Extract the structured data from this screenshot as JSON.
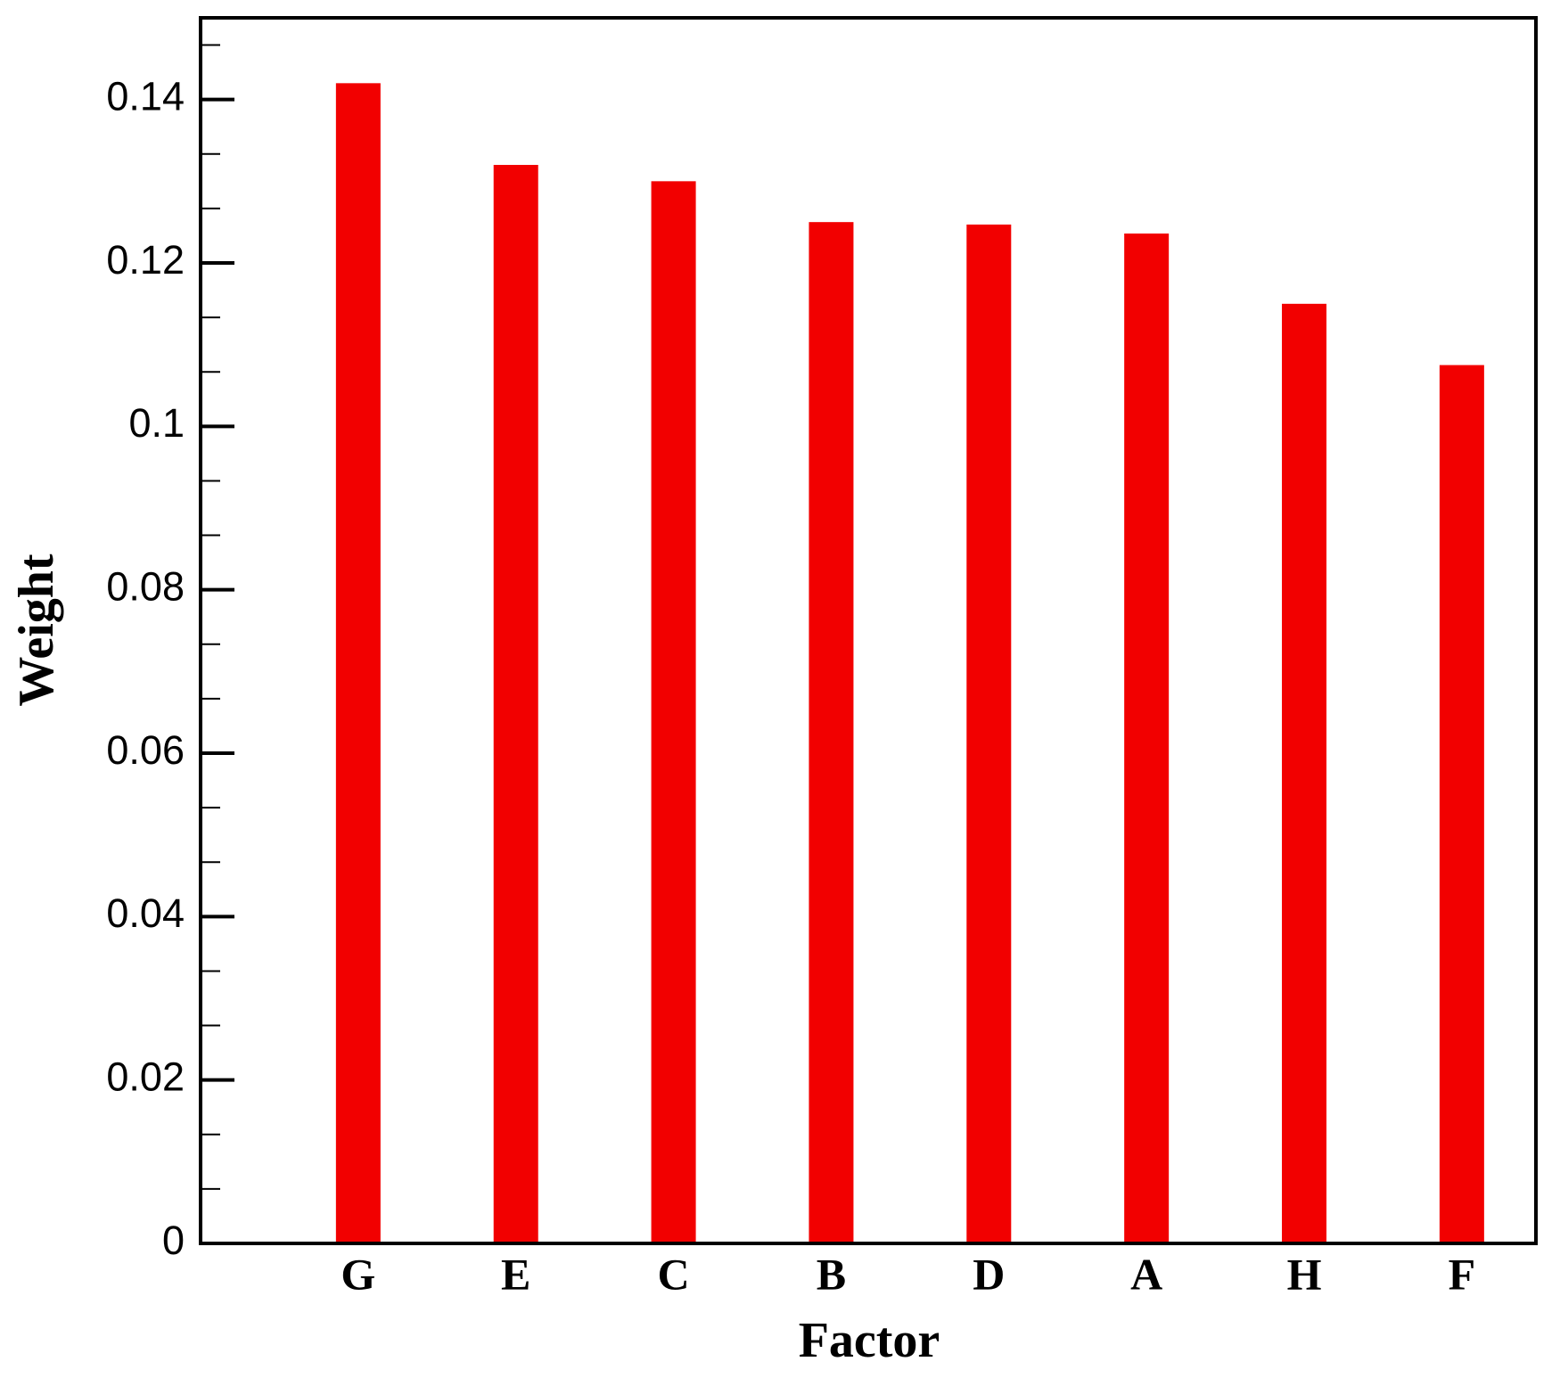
{
  "chart_data": {
    "type": "bar",
    "x_label": "Factor",
    "y_label": "Weight",
    "categories": [
      "G",
      "E",
      "C",
      "B",
      "D",
      "A",
      "H",
      "F"
    ],
    "values": [
      0.142,
      0.132,
      0.13,
      0.125,
      0.1247,
      0.1236,
      0.115,
      0.1075
    ],
    "color": "#f20000",
    "ylim": [
      0,
      0.15
    ],
    "yticks": [
      0,
      0.02,
      0.04,
      0.06,
      0.08,
      0.1,
      0.12,
      0.14
    ],
    "grid": false
  }
}
